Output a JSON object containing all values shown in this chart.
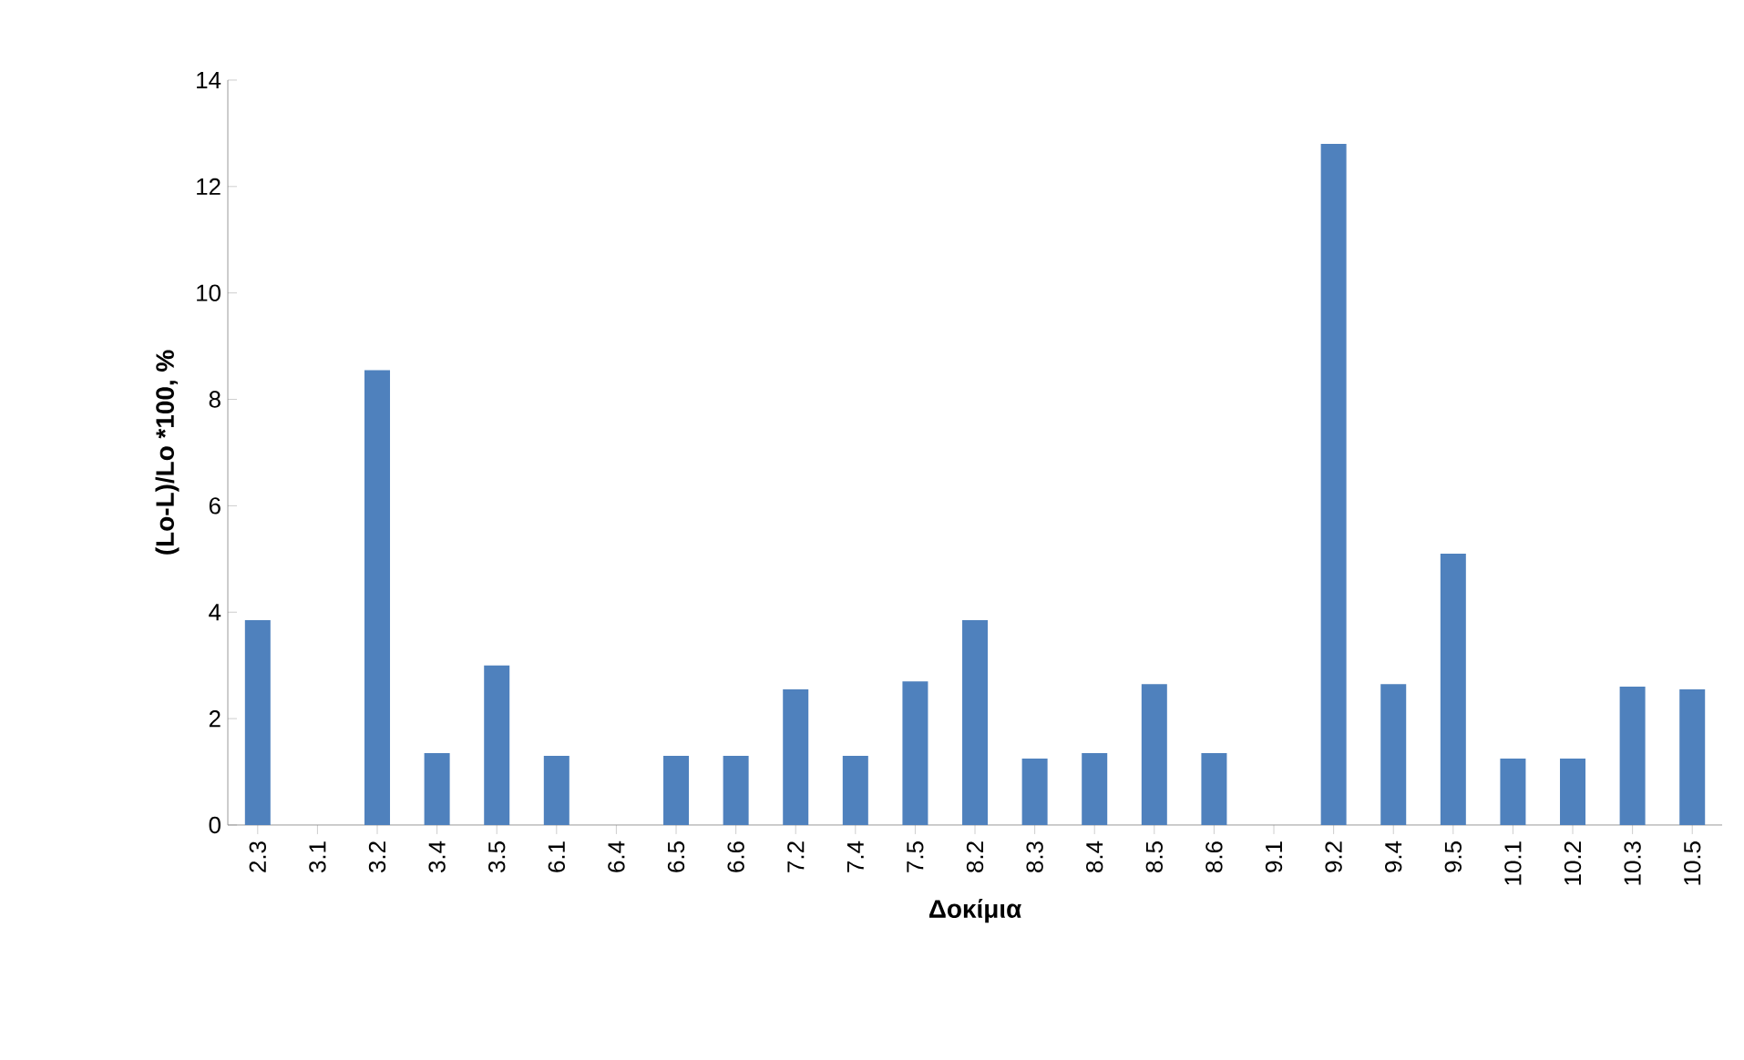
{
  "chart_data": {
    "type": "bar",
    "xlabel": "Δοκίμια",
    "ylabel": "(Lo-L)/Lo *100, %",
    "categories": [
      "2.3",
      "3.1",
      "3.2",
      "3.4",
      "3.5",
      "6.1",
      "6.4",
      "6.5",
      "6.6",
      "7.2",
      "7.4",
      "7.5",
      "8.2",
      "8.3",
      "8.4",
      "8.5",
      "8.6",
      "9.1",
      "9.2",
      "9.4",
      "9.5",
      "10.1",
      "10.2",
      "10.3",
      "10.5"
    ],
    "values": [
      3.85,
      0,
      8.55,
      1.35,
      3.0,
      1.3,
      0,
      1.3,
      1.3,
      2.55,
      1.3,
      2.7,
      3.85,
      1.25,
      1.35,
      2.65,
      1.35,
      0,
      12.8,
      2.65,
      5.1,
      1.25,
      1.25,
      2.6,
      2.55
    ],
    "color": "#4f81bd",
    "ylim": [
      0,
      14
    ],
    "yticks": [
      0,
      2,
      4,
      6,
      8,
      10,
      12,
      14
    ]
  }
}
